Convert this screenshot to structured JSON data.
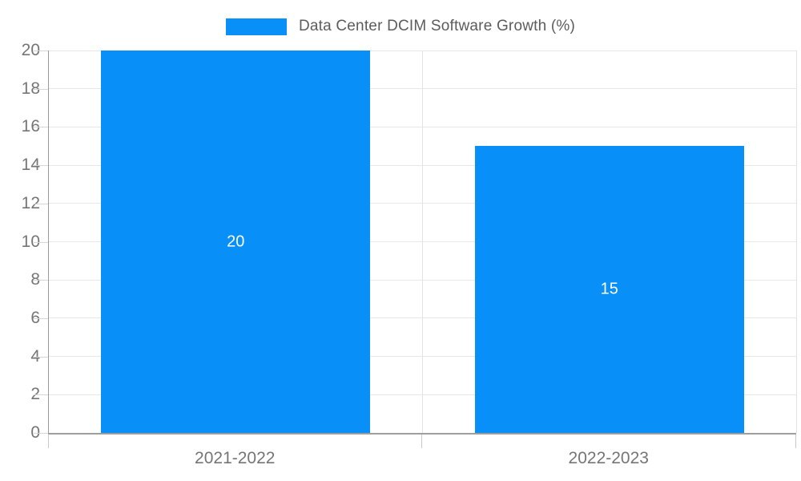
{
  "legend": {
    "label": "Data Center DCIM Software Growth (%)"
  },
  "colors": {
    "bar": "#0890f8",
    "data_label": "#ffffff",
    "axis_line": "#9e9e9e",
    "gridline": "#e7e7e7",
    "tick_label": "#757575",
    "legend_text": "#5c5c5c",
    "background": "#ffffff"
  },
  "chart_data": {
    "type": "bar",
    "title": "Data Center DCIM Software Growth (%)",
    "categories": [
      "2021-2022",
      "2022-2023"
    ],
    "values": [
      20,
      15
    ],
    "data_labels": [
      "20",
      "15"
    ],
    "xlabel": "",
    "ylabel": "",
    "ylim": [
      0,
      20
    ],
    "ytick_step": 2,
    "ytick_labels": [
      "0",
      "2",
      "4",
      "6",
      "8",
      "10",
      "12",
      "14",
      "16",
      "18",
      "20"
    ],
    "grid": true,
    "legend_position": "top-center",
    "bar_color": "#0890f8",
    "data_label_color": "#ffffff"
  }
}
